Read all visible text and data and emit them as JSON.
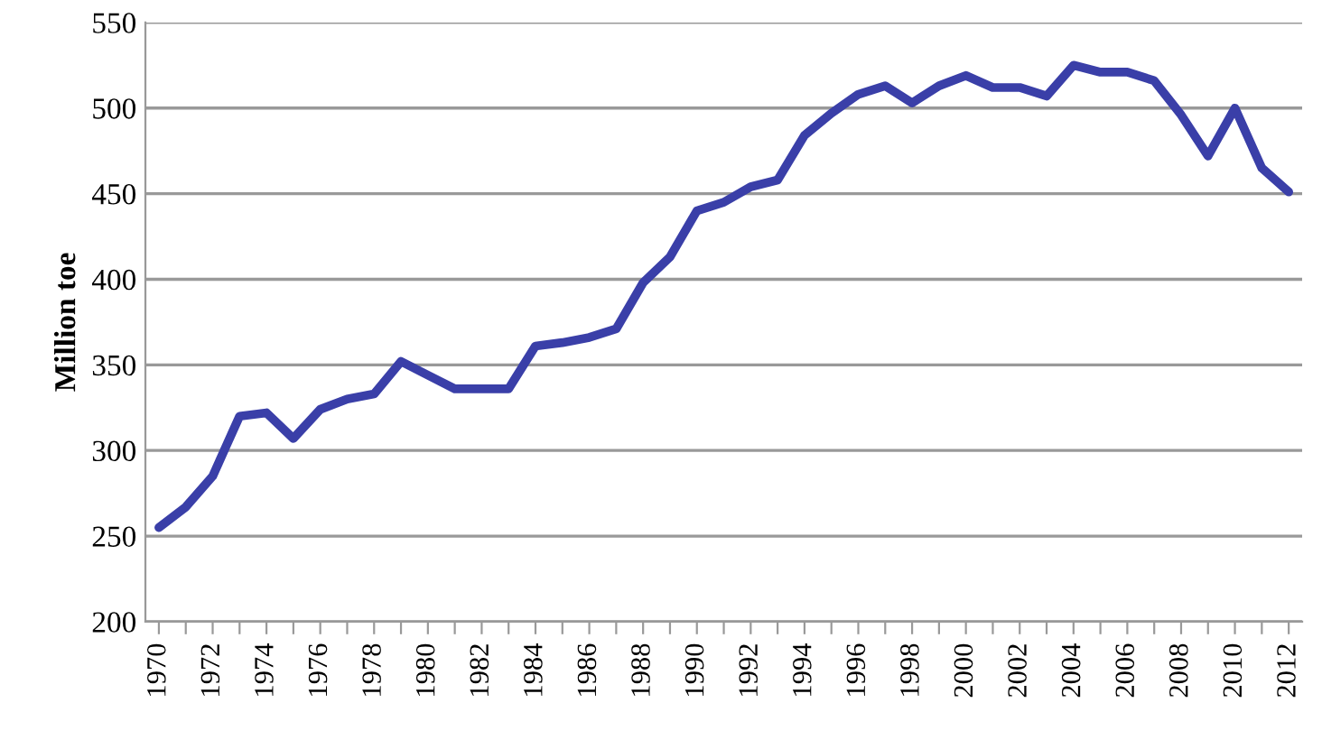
{
  "chart_data": {
    "type": "line",
    "ylabel": "Million toe",
    "categories": [
      "1970",
      null,
      "1972",
      null,
      "1974",
      null,
      "1976",
      null,
      "1978",
      null,
      "1980",
      null,
      "1982",
      null,
      "1984",
      null,
      "1986",
      null,
      "1988",
      null,
      "1990",
      null,
      "1992",
      null,
      "1994",
      null,
      "1996",
      null,
      "1998",
      null,
      "2000",
      null,
      "2002",
      null,
      "2004",
      null,
      "2006",
      null,
      "2008",
      null,
      "2010",
      null,
      "2012"
    ],
    "series": [
      {
        "color": "#3a3fa8",
        "values": [
          255,
          267,
          285,
          320,
          322,
          307,
          324,
          330,
          333,
          352,
          344,
          336,
          336,
          336,
          361,
          363,
          366,
          371,
          398,
          413,
          440,
          445,
          454,
          458,
          484,
          497,
          508,
          513,
          503,
          513,
          519,
          512,
          512,
          507,
          525,
          521,
          521,
          516,
          496,
          472,
          500,
          465,
          451
        ]
      }
    ],
    "ylim": [
      200,
      550
    ],
    "yticks": [
      200,
      250,
      300,
      350,
      400,
      450,
      500,
      550
    ],
    "grid": "y",
    "marker": "none",
    "line_style": "solid"
  }
}
